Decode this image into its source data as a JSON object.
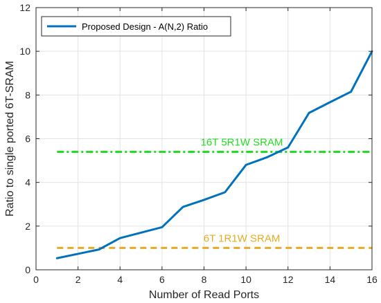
{
  "chart_data": {
    "type": "line",
    "xlabel": "Number of Read Ports",
    "ylabel": "Ratio to single ported 6T-SRAM",
    "xlim": [
      0,
      16
    ],
    "ylim": [
      0,
      12
    ],
    "xticks": [
      "0",
      "2",
      "4",
      "6",
      "8",
      "10",
      "12",
      "14",
      "16"
    ],
    "yticks": [
      "0",
      "2",
      "4",
      "6",
      "8",
      "10",
      "12"
    ],
    "grid": true,
    "legend_position": "top-left",
    "series": [
      {
        "name": "Proposed Design - A(N,2) Ratio",
        "color": "#0072bd",
        "style": "solid",
        "x": [
          1,
          2,
          3,
          4,
          5,
          6,
          7,
          8,
          9,
          10,
          11,
          12,
          13,
          14,
          15,
          16
        ],
        "y": [
          0.53,
          0.73,
          0.93,
          1.45,
          1.7,
          1.95,
          2.88,
          3.2,
          3.55,
          4.8,
          5.15,
          5.6,
          7.18,
          7.67,
          8.15,
          10.0
        ]
      }
    ],
    "reference_lines": [
      {
        "label": "16T 5R1W SRAM",
        "y": 5.4,
        "x_range": [
          1,
          16
        ],
        "color": "#22dd22",
        "style": "dash-dot"
      },
      {
        "label": "6T 1R1W SRAM",
        "y": 1.0,
        "x_range": [
          1,
          16
        ],
        "color": "#e6ab22",
        "style": "dashed"
      }
    ]
  }
}
